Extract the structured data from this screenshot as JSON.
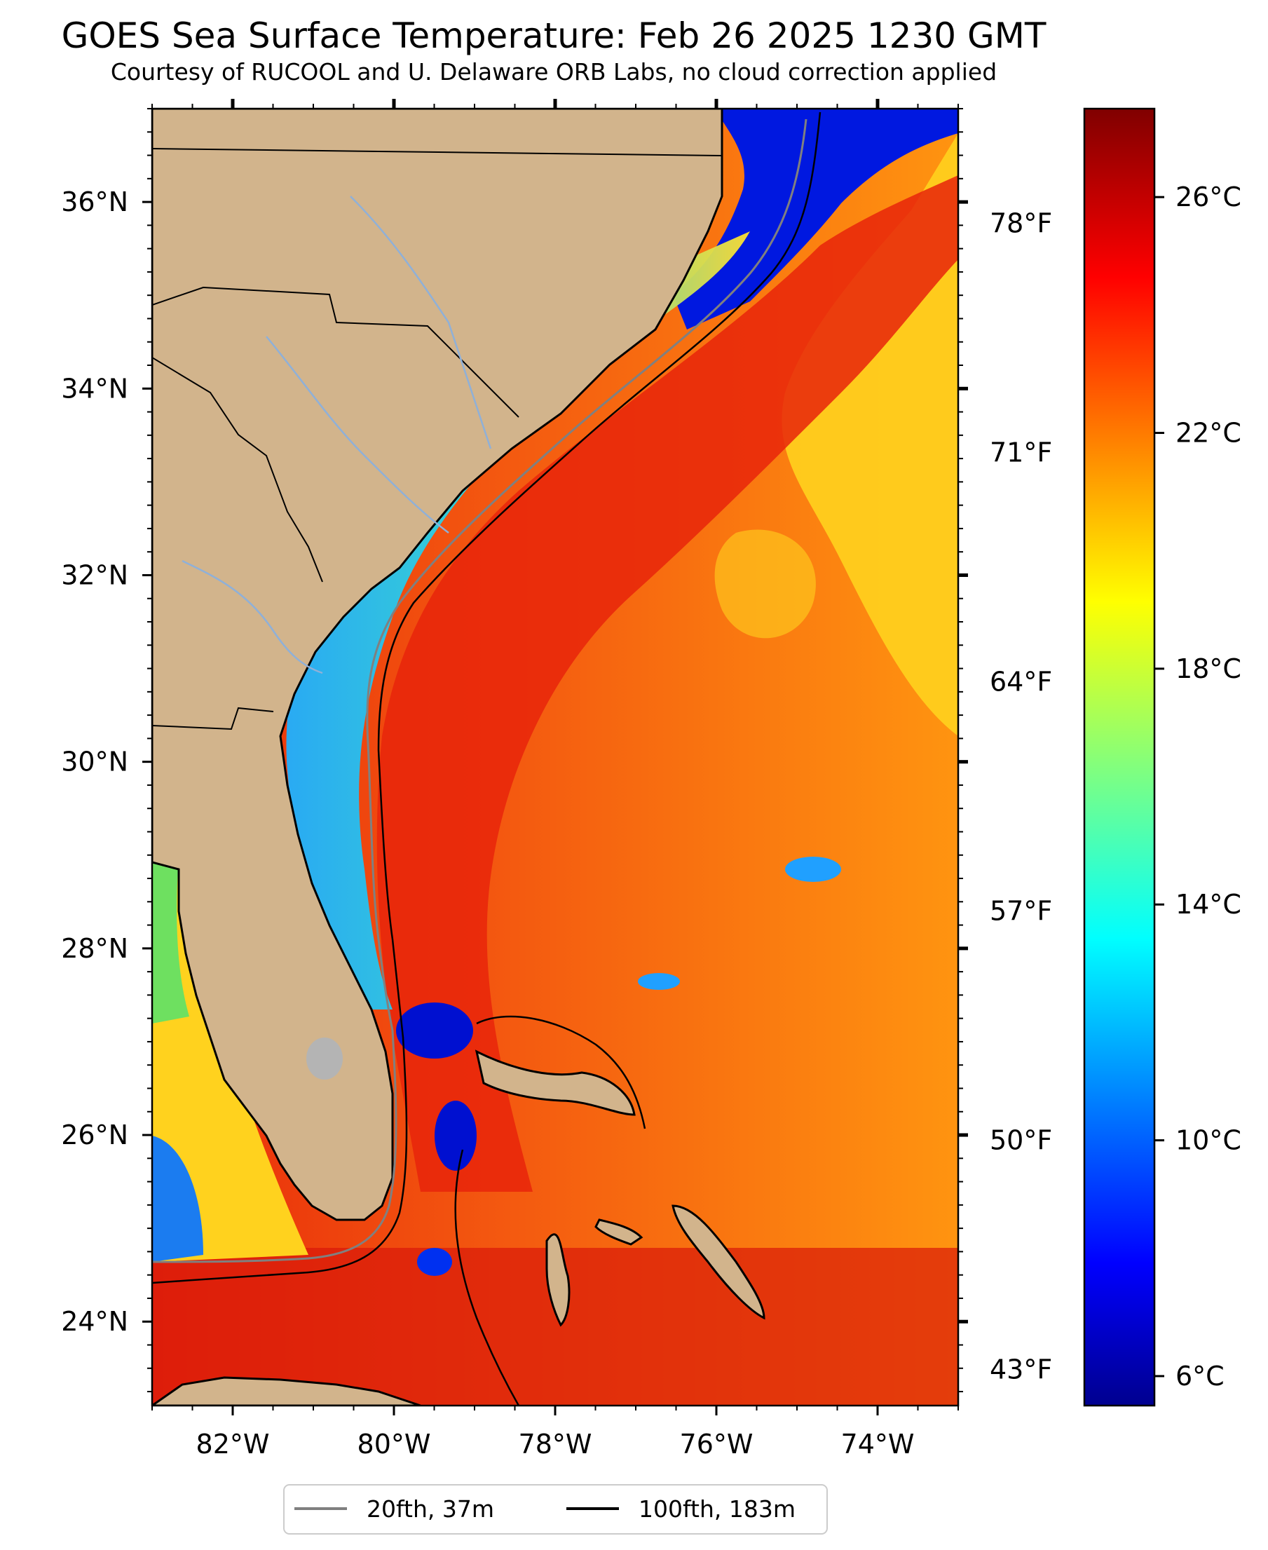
{
  "title": "GOES Sea Surface Temperature: Feb 26 2025 1230 GMT",
  "subtitle": "Courtesy of RUCOOL and U. Delaware ORB Labs, no cloud correction applied",
  "map": {
    "lon_range": [
      -83,
      -73
    ],
    "lat_range": [
      23.1,
      37
    ],
    "lat_ticks": [
      {
        "value": 36,
        "label": "36°N"
      },
      {
        "value": 34,
        "label": "34°N"
      },
      {
        "value": 32,
        "label": "32°N"
      },
      {
        "value": 30,
        "label": "30°N"
      },
      {
        "value": 28,
        "label": "28°N"
      },
      {
        "value": 26,
        "label": "26°N"
      },
      {
        "value": 24,
        "label": "24°N"
      }
    ],
    "lon_ticks": [
      {
        "value": -82,
        "label": "82°W"
      },
      {
        "value": -80,
        "label": "80°W"
      },
      {
        "value": -78,
        "label": "78°W"
      },
      {
        "value": -76,
        "label": "76°W"
      },
      {
        "value": -74,
        "label": "74°W"
      }
    ],
    "colors": {
      "land": "#d2b48c",
      "coast": "#000000",
      "rivers": "#8fb0d8",
      "cold": "#0010d0",
      "shelf_cool": "#20c8e8",
      "warm_core": "#e82a0a",
      "offshore": "#ff9410",
      "warm_yellow": "#ffd21e"
    }
  },
  "colorbar": {
    "colormap": "jet",
    "range_c": [
      5.5,
      27.5
    ],
    "celsius_ticks": [
      {
        "value": 26,
        "label": "26°C"
      },
      {
        "value": 22,
        "label": "22°C"
      },
      {
        "value": 18,
        "label": "18°C"
      },
      {
        "value": 14,
        "label": "14°C"
      },
      {
        "value": 10,
        "label": "10°C"
      },
      {
        "value": 6,
        "label": "6°C"
      }
    ],
    "fahrenheit_ticks": [
      {
        "value": 78,
        "label": "78°F"
      },
      {
        "value": 71,
        "label": "71°F"
      },
      {
        "value": 64,
        "label": "64°F"
      },
      {
        "value": 57,
        "label": "57°F"
      },
      {
        "value": 50,
        "label": "50°F"
      },
      {
        "value": 43,
        "label": "43°F"
      }
    ]
  },
  "legend": {
    "items": [
      {
        "label": "20fth, 37m",
        "color": "#808080"
      },
      {
        "label": "100fth, 183m",
        "color": "#000000"
      }
    ]
  }
}
